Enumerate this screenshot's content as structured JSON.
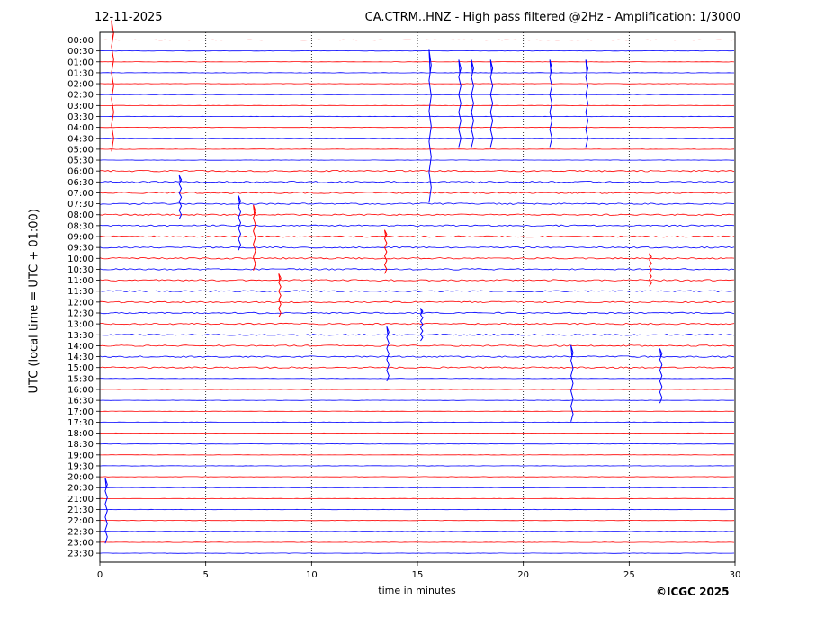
{
  "header": {
    "date": "12-11-2025",
    "title": "CA.CTRM..HNZ - High pass filtered @2Hz - Amplification: 1/3000"
  },
  "footer": {
    "copyright": "©ICGC 2025"
  },
  "colors": {
    "trace_a": "#ff0000",
    "trace_b": "#0000ff",
    "grid": "#000000"
  },
  "chart_data": {
    "type": "line",
    "title": "CA.CTRM..HNZ - High pass filtered @2Hz - Amplification: 1/3000",
    "xlabel": "time in minutes",
    "ylabel": "UTC (local time = UTC + 01:00)",
    "xlim": [
      0,
      30
    ],
    "x_ticks": [
      "0",
      "5",
      "10",
      "15",
      "20",
      "25",
      "30"
    ],
    "row_labels": [
      "00:00",
      "00:30",
      "01:00",
      "01:30",
      "02:00",
      "02:30",
      "03:00",
      "03:30",
      "04:00",
      "04:30",
      "05:00",
      "05:30",
      "06:00",
      "06:30",
      "07:00",
      "07:30",
      "08:00",
      "08:30",
      "09:00",
      "09:30",
      "10:00",
      "10:30",
      "11:00",
      "11:30",
      "12:00",
      "12:30",
      "13:00",
      "13:30",
      "14:00",
      "14:30",
      "15:00",
      "15:30",
      "16:00",
      "16:30",
      "17:00",
      "17:30",
      "18:00",
      "18:30",
      "19:00",
      "19:30",
      "20:00",
      "20:30",
      "21:00",
      "21:30",
      "22:00",
      "22:30",
      "23:00",
      "23:30"
    ],
    "grid": "vertical dotted",
    "trace_colors": [
      "red",
      "blue"
    ],
    "spikes": [
      {
        "row": "00:00",
        "x": 0.6,
        "amp": 12
      },
      {
        "row": "01:30",
        "x": 15.6,
        "amp": 14
      },
      {
        "row": "01:30",
        "x": 17.0,
        "amp": 8
      },
      {
        "row": "01:30",
        "x": 17.6,
        "amp": 8
      },
      {
        "row": "01:30",
        "x": 18.5,
        "amp": 8
      },
      {
        "row": "01:30",
        "x": 21.3,
        "amp": 8
      },
      {
        "row": "01:30",
        "x": 23.0,
        "amp": 8
      },
      {
        "row": "06:30",
        "x": 3.8,
        "amp": 4
      },
      {
        "row": "07:30",
        "x": 6.6,
        "amp": 5
      },
      {
        "row": "08:00",
        "x": 7.3,
        "amp": 6
      },
      {
        "row": "09:00",
        "x": 13.5,
        "amp": 4
      },
      {
        "row": "10:00",
        "x": 26.0,
        "amp": 3
      },
      {
        "row": "11:00",
        "x": 8.5,
        "amp": 4
      },
      {
        "row": "12:30",
        "x": 15.2,
        "amp": 3
      },
      {
        "row": "13:30",
        "x": 13.6,
        "amp": 5
      },
      {
        "row": "14:30",
        "x": 22.3,
        "amp": 7
      },
      {
        "row": "14:30",
        "x": 26.5,
        "amp": 5
      },
      {
        "row": "20:30",
        "x": 0.3,
        "amp": 6
      }
    ]
  }
}
